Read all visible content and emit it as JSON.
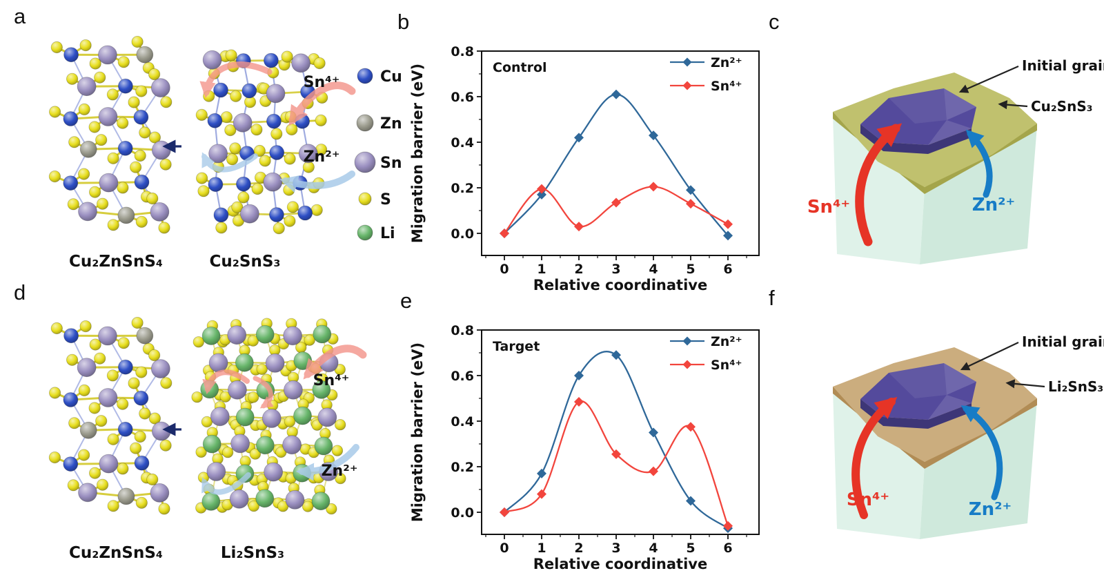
{
  "figure": {
    "panel_labels": {
      "a": "a",
      "b": "b",
      "c": "c",
      "d": "d",
      "e": "e",
      "f": "f"
    }
  },
  "panels": {
    "a": {
      "left_formula": "Cu₂ZnSnS₄",
      "right_formula": "Cu₂SnS₃",
      "sn_label": "Sn⁴⁺",
      "zn_label": "Zn²⁺",
      "legend": [
        {
          "element": "Cu",
          "color": "#2e4fc5"
        },
        {
          "element": "Zn",
          "color": "#9b9b8d"
        },
        {
          "element": "Sn",
          "color": "#9a8fc0"
        },
        {
          "element": "S",
          "color": "#e8df1f"
        },
        {
          "element": "Li",
          "color": "#67b56a"
        }
      ]
    },
    "c": {
      "grain_label": "Initial grain",
      "layer_formula": "Cu₂SnS₃",
      "sn_label": "Sn⁴⁺",
      "zn_label": "Zn²⁺"
    },
    "d": {
      "left_formula": "Cu₂ZnSnS₄",
      "right_formula": "Li₂SnS₃",
      "sn_label": "Sn⁴⁺",
      "zn_label": "Zn²⁺"
    },
    "f": {
      "grain_label": "Initial grain",
      "layer_formula": "Li₂SnS₃",
      "sn_label": "Sn⁴⁺",
      "zn_label": "Zn²⁺"
    }
  },
  "chart_data": [
    {
      "type": "line",
      "panel": "b",
      "title_in_plot": "Control",
      "xlabel": "Relative coordinative",
      "ylabel": "Migration barrier (eV)",
      "x": [
        0,
        1,
        2,
        3,
        4,
        5,
        6
      ],
      "series": [
        {
          "name": "Zn²⁺",
          "color": "#2f6899",
          "values": [
            0.0,
            0.17,
            0.42,
            0.61,
            0.43,
            0.19,
            -0.01
          ]
        },
        {
          "name": "Sn⁴⁺",
          "color": "#f2453d",
          "values": [
            0.0,
            0.195,
            0.03,
            0.135,
            0.205,
            0.13,
            0.04
          ]
        }
      ],
      "x_ticks": [
        0,
        1,
        2,
        3,
        4,
        5,
        6
      ],
      "y_ticks": [
        0.0,
        0.2,
        0.4,
        0.6,
        0.8
      ],
      "xlim": [
        -0.61,
        6.83
      ],
      "ylim": [
        -0.1,
        0.8
      ],
      "legend_position": "top-right",
      "grid": false
    },
    {
      "type": "line",
      "panel": "e",
      "title_in_plot": "Target",
      "xlabel": "Relative coordinative",
      "ylabel": "Migration barrier (eV)",
      "x": [
        0,
        1,
        2,
        3,
        4,
        5,
        6
      ],
      "series": [
        {
          "name": "Zn²⁺",
          "color": "#2f6899",
          "values": [
            0.0,
            0.17,
            0.6,
            0.69,
            0.35,
            0.05,
            -0.07
          ]
        },
        {
          "name": "Sn⁴⁺",
          "color": "#f2453d",
          "values": [
            0.0,
            0.08,
            0.485,
            0.255,
            0.18,
            0.375,
            -0.06
          ]
        }
      ],
      "x_ticks": [
        0,
        1,
        2,
        3,
        4,
        5,
        6
      ],
      "y_ticks": [
        0.0,
        0.2,
        0.4,
        0.6,
        0.8
      ],
      "xlim": [
        -0.61,
        6.83
      ],
      "ylim": [
        -0.1,
        0.8
      ],
      "legend_position": "top-right",
      "grid": false
    }
  ],
  "colors": {
    "substrate_left": "#dff2e9",
    "substrate_right": "#cfe9dc",
    "cts_layer": "#c0c16e",
    "cts_layer_edge": "#a4a54b",
    "lts_layer": "#cbad7e",
    "lts_layer_edge": "#b18c55",
    "grain": "#544a9c",
    "grain_edge": "#3d3677",
    "arrow_red": "#e63426",
    "arrow_blue": "#177cc6",
    "arrow_salmon": "#f4968c",
    "arrow_lightblue": "#a9cbe9",
    "navy": "#1b2a6b",
    "text": "#111111",
    "bond_yellow": "#cfc51d",
    "bond_blue": "#5268c8"
  }
}
